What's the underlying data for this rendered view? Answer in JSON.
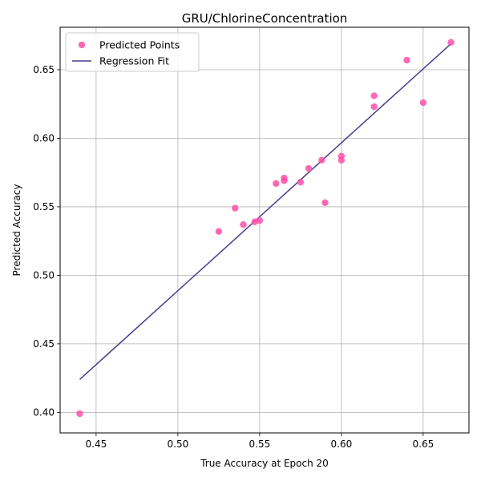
{
  "chart_data": {
    "type": "scatter",
    "title": "GRU/ChlorineConcentration",
    "xlabel": "True Accuracy at Epoch 20",
    "ylabel": "Predicted Accuracy",
    "xlim": [
      0.428,
      0.678
    ],
    "ylim": [
      0.385,
      0.681
    ],
    "xticks": [
      0.45,
      0.5,
      0.55,
      0.6,
      0.65
    ],
    "yticks": [
      0.4,
      0.45,
      0.5,
      0.55,
      0.6,
      0.65
    ],
    "xtick_labels": [
      "0.45",
      "0.50",
      "0.55",
      "0.60",
      "0.65"
    ],
    "ytick_labels": [
      "0.40",
      "0.45",
      "0.50",
      "0.55",
      "0.60",
      "0.65"
    ],
    "grid": true,
    "legend_position": "top-left",
    "series": [
      {
        "name": "Predicted Points",
        "kind": "scatter",
        "color": "#ff4fa8",
        "points": [
          [
            0.44,
            0.399
          ],
          [
            0.525,
            0.532
          ],
          [
            0.535,
            0.549
          ],
          [
            0.54,
            0.537
          ],
          [
            0.547,
            0.539
          ],
          [
            0.55,
            0.54
          ],
          [
            0.56,
            0.567
          ],
          [
            0.565,
            0.569
          ],
          [
            0.565,
            0.571
          ],
          [
            0.575,
            0.568
          ],
          [
            0.58,
            0.578
          ],
          [
            0.588,
            0.584
          ],
          [
            0.59,
            0.553
          ],
          [
            0.6,
            0.584
          ],
          [
            0.6,
            0.587
          ],
          [
            0.62,
            0.623
          ],
          [
            0.62,
            0.631
          ],
          [
            0.64,
            0.657
          ],
          [
            0.65,
            0.626
          ],
          [
            0.667,
            0.67
          ]
        ]
      },
      {
        "name": "Regression Fit",
        "kind": "line",
        "color": "#483d8b",
        "points": [
          [
            0.44,
            0.424
          ],
          [
            0.667,
            0.669
          ]
        ]
      }
    ]
  }
}
